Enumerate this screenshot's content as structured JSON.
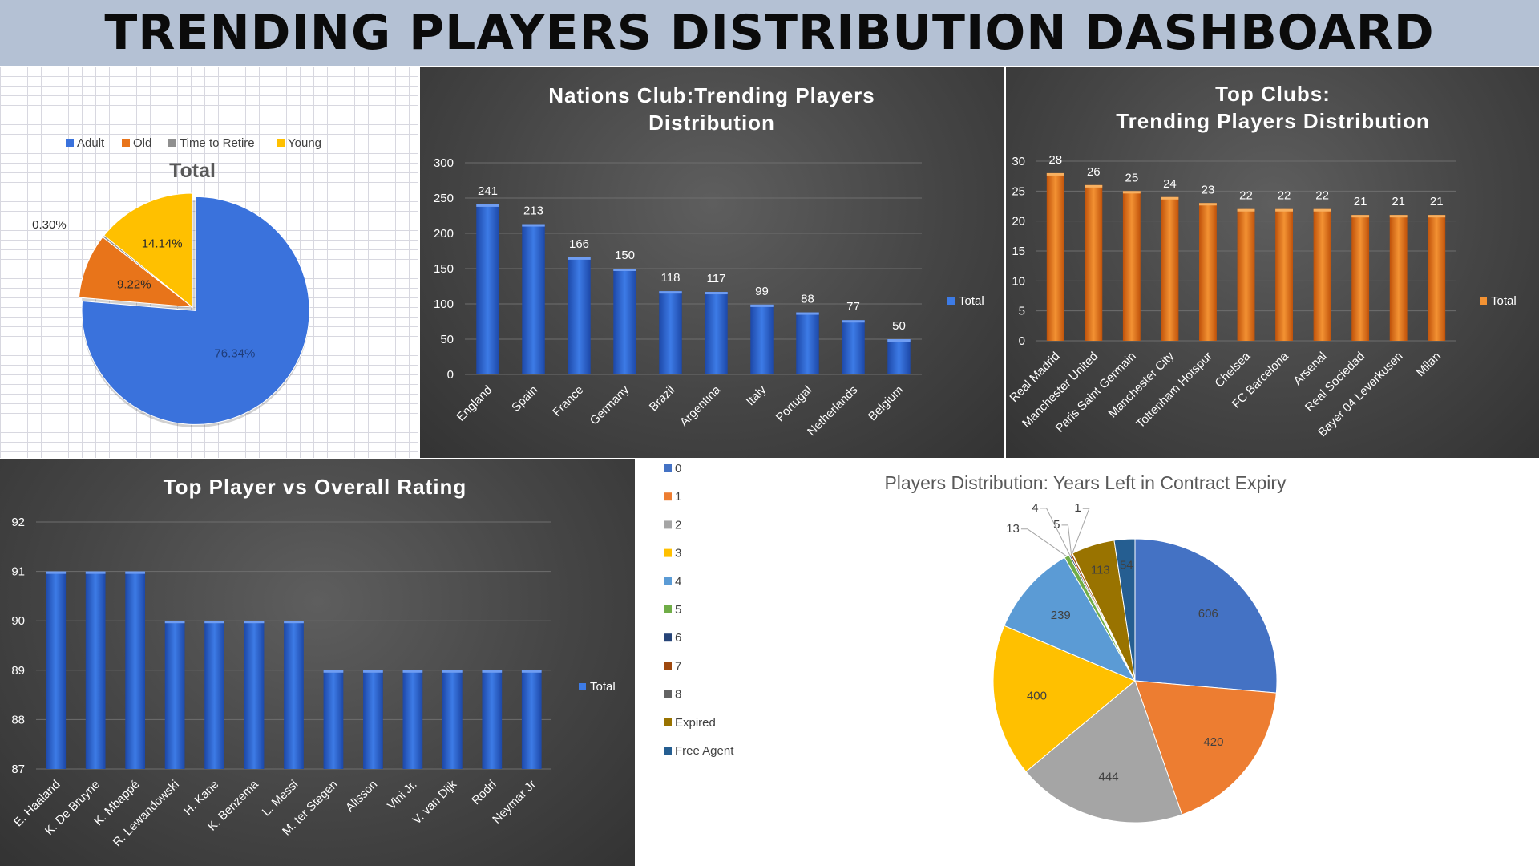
{
  "dashboard": {
    "title": "TRENDING PLAYERS DISTRIBUTION DASHBOARD"
  },
  "colors": {
    "blue": "#3a6fd8",
    "orange": "#e8741a",
    "yellow": "#ffc000",
    "grey": "#a5a5a5"
  },
  "chart_data": [
    {
      "id": "age",
      "type": "pie",
      "title": "Total",
      "labels": [
        "Adult",
        "Old",
        "Time to Retire",
        "Young"
      ],
      "values": [
        76.34,
        9.22,
        0.3,
        14.14
      ],
      "value_labels": [
        "76.34%",
        "9.22%",
        "0.30%",
        "14.14%"
      ],
      "colors": [
        "#3a72dc",
        "#e8741a",
        "#8f8f8f",
        "#ffc000"
      ],
      "legend": "top"
    },
    {
      "id": "nations",
      "type": "bar",
      "title": "Nations Club:Trending Players Distribution",
      "categories": [
        "England",
        "Spain",
        "France",
        "Germany",
        "Brazil",
        "Argentina",
        "Italy",
        "Portugal",
        "Netherlands",
        "Belgium"
      ],
      "series": [
        {
          "name": "Total",
          "values": [
            241,
            213,
            166,
            150,
            118,
            117,
            99,
            88,
            77,
            50
          ]
        }
      ],
      "ylim": [
        0,
        300
      ],
      "yticks": [
        0,
        50,
        100,
        150,
        200,
        250,
        300
      ],
      "grid": true,
      "legend": "right"
    },
    {
      "id": "clubs",
      "type": "bar",
      "title": "Top Clubs: Trending Players Distribution",
      "categories": [
        "Real Madrid",
        "Manchester United",
        "Paris Saint Germain",
        "Manchester City",
        "Tottenham Hotspur",
        "Chelsea",
        "FC Barcelona",
        "Arsenal",
        "Real Sociedad",
        "Bayer 04 Leverkusen",
        "Milan"
      ],
      "series": [
        {
          "name": "Total",
          "values": [
            28,
            26,
            25,
            24,
            23,
            22,
            22,
            22,
            21,
            21,
            21
          ]
        }
      ],
      "ylim": [
        0,
        30
      ],
      "yticks": [
        0,
        5,
        10,
        15,
        20,
        25,
        30
      ],
      "grid": true,
      "legend": "right"
    },
    {
      "id": "ratings",
      "type": "bar",
      "title": "Top Player vs Overall Rating",
      "categories": [
        "E. Haaland",
        "K. De Bruyne",
        "K. Mbappé",
        "R. Lewandowski",
        "H. Kane",
        "K. Benzema",
        "L. Messi",
        "M. ter Stegen",
        "Alisson",
        "Vini Jr.",
        "V. van Dijk",
        "Rodri",
        "Neymar Jr"
      ],
      "series": [
        {
          "name": "Total",
          "values": [
            91,
            91,
            91,
            90,
            90,
            90,
            90,
            89,
            89,
            89,
            89,
            89,
            89
          ]
        }
      ],
      "ylim": [
        87,
        92
      ],
      "yticks": [
        87,
        88,
        89,
        90,
        91,
        92
      ],
      "grid": true,
      "legend": "right"
    },
    {
      "id": "contract",
      "type": "pie",
      "title": "Players Distribution: Years Left in Contract Expiry",
      "labels": [
        "0",
        "1",
        "2",
        "3",
        "4",
        "5",
        "6",
        "7",
        "8",
        "Expired",
        "Free Agent"
      ],
      "values": [
        606,
        420,
        444,
        400,
        239,
        13,
        4,
        5,
        1,
        113,
        54
      ],
      "colors": [
        "#4472c4",
        "#ed7d31",
        "#a5a5a5",
        "#ffc000",
        "#5b9bd5",
        "#70ad47",
        "#264478",
        "#9e480e",
        "#636363",
        "#997300",
        "#255e91"
      ],
      "legend": "left"
    }
  ]
}
